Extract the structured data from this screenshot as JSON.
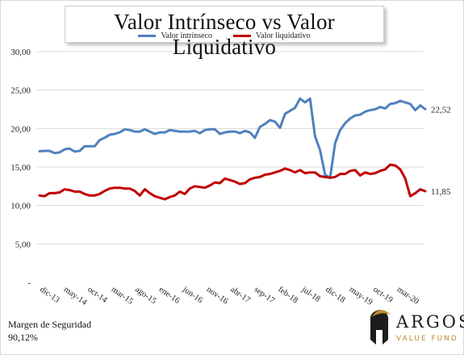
{
  "chart_data": {
    "type": "line",
    "title": "Valor Intrínseco vs Valor Liquidativo",
    "xlabel": "",
    "ylabel": "",
    "ylim": [
      0,
      30
    ],
    "y_ticks": [
      "-",
      "5,00",
      "10,00",
      "15,00",
      "20,00",
      "25,00",
      "30,00"
    ],
    "x_tick_labels": [
      "dic-13",
      "may-14",
      "oct-14",
      "mar-15",
      "ago-15",
      "ene-16",
      "jun-16",
      "nov-16",
      "abr-17",
      "sep-17",
      "feb-18",
      "jul-18",
      "dic-18",
      "may-19",
      "oct-19",
      "mar-20"
    ],
    "grid": true,
    "legend_position": "top-center",
    "series": [
      {
        "name": "Valor intrínseco",
        "color": "#4f81bd",
        "end_label": "22,52",
        "values": [
          17.05,
          17.1,
          17.1,
          16.8,
          16.9,
          17.3,
          17.4,
          17.0,
          17.1,
          17.7,
          17.7,
          17.7,
          18.5,
          18.8,
          19.2,
          19.3,
          19.5,
          19.9,
          19.8,
          19.6,
          19.6,
          19.9,
          19.6,
          19.3,
          19.5,
          19.5,
          19.8,
          19.7,
          19.6,
          19.6,
          19.6,
          19.7,
          19.4,
          19.8,
          19.9,
          19.9,
          19.3,
          19.5,
          19.6,
          19.6,
          19.4,
          19.7,
          19.5,
          18.8,
          20.2,
          20.6,
          21.1,
          20.9,
          20.1,
          21.9,
          22.3,
          22.7,
          23.9,
          23.4,
          23.9,
          19.0,
          17.2,
          14.0,
          13.6,
          18.1,
          19.8,
          20.7,
          21.3,
          21.7,
          21.8,
          22.2,
          22.4,
          22.5,
          22.8,
          22.6,
          23.2,
          23.3,
          23.6,
          23.4,
          23.2,
          22.4,
          23.0,
          22.52
        ]
      },
      {
        "name": "Valor liquidativo",
        "color": "#c00000",
        "end_label": "11,85",
        "values": [
          11.3,
          11.2,
          11.6,
          11.6,
          11.7,
          12.1,
          12.0,
          11.8,
          11.8,
          11.5,
          11.3,
          11.3,
          11.5,
          11.9,
          12.2,
          12.3,
          12.3,
          12.2,
          12.2,
          11.9,
          11.3,
          12.1,
          11.6,
          11.2,
          11.0,
          10.8,
          11.1,
          11.3,
          11.8,
          11.5,
          12.2,
          12.5,
          12.4,
          12.3,
          12.6,
          13.0,
          12.9,
          13.5,
          13.3,
          13.1,
          12.8,
          12.9,
          13.4,
          13.6,
          13.7,
          14.0,
          14.1,
          14.3,
          14.5,
          14.8,
          14.6,
          14.3,
          14.6,
          14.2,
          14.3,
          14.3,
          13.8,
          13.7,
          13.6,
          13.7,
          14.1,
          14.1,
          14.5,
          14.6,
          13.9,
          14.3,
          14.1,
          14.2,
          14.5,
          14.7,
          15.3,
          15.2,
          14.7,
          13.5,
          11.2,
          11.6,
          12.1,
          11.85
        ]
      }
    ]
  },
  "margin": {
    "label": "Margen de Seguridad",
    "value": "90,12%"
  },
  "logo": {
    "word": "ARGOS",
    "subtitle": "VALUE FUND"
  }
}
